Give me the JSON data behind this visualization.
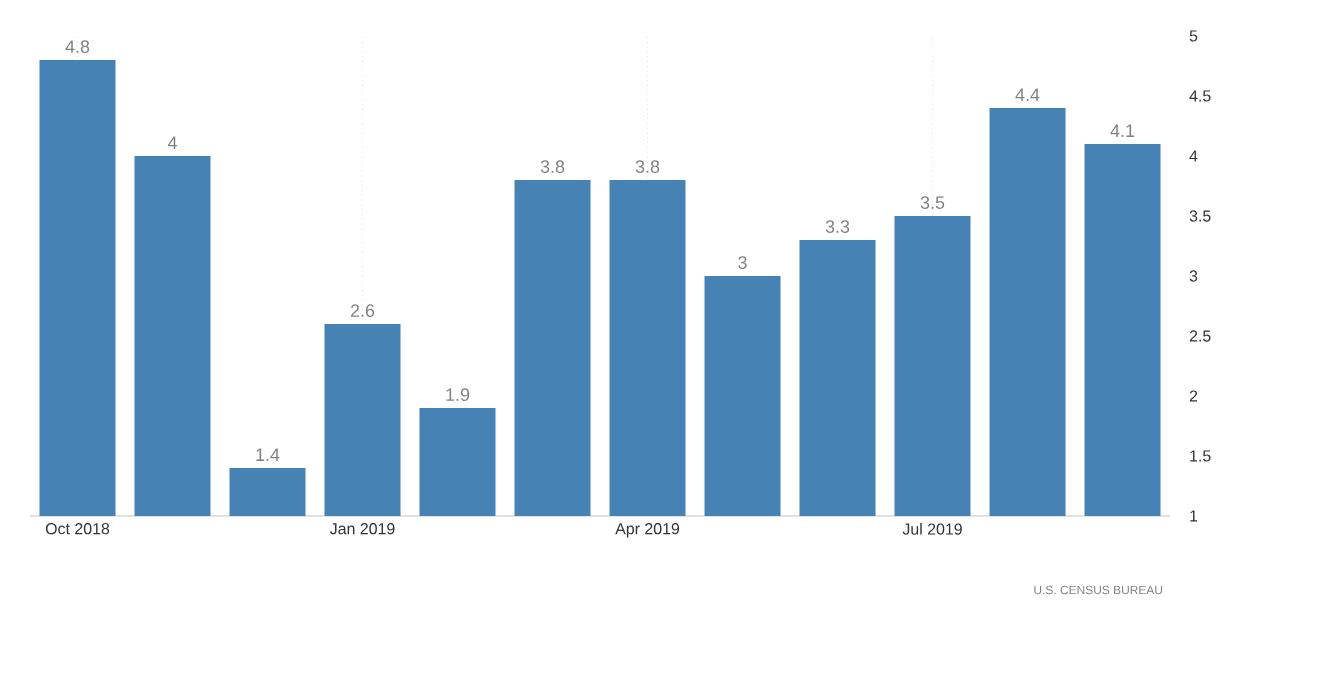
{
  "chart_data": {
    "type": "bar",
    "categories": [
      "Oct 2018",
      null,
      null,
      "Jan 2019",
      null,
      null,
      "Apr 2019",
      null,
      null,
      "Jul 2019",
      null,
      null
    ],
    "values": [
      4.8,
      4,
      1.4,
      2.6,
      1.9,
      3.8,
      3.8,
      3,
      3.3,
      3.5,
      4.4,
      4.1
    ],
    "color": "#4682b4",
    "ylim": [
      1,
      5
    ],
    "yticks": [
      1,
      1.5,
      2,
      2.5,
      3,
      3.5,
      4,
      4.5,
      5
    ],
    "grid": "x",
    "data_labels": true,
    "annotations": [
      "U.S. CENSUS BUREAU"
    ]
  }
}
